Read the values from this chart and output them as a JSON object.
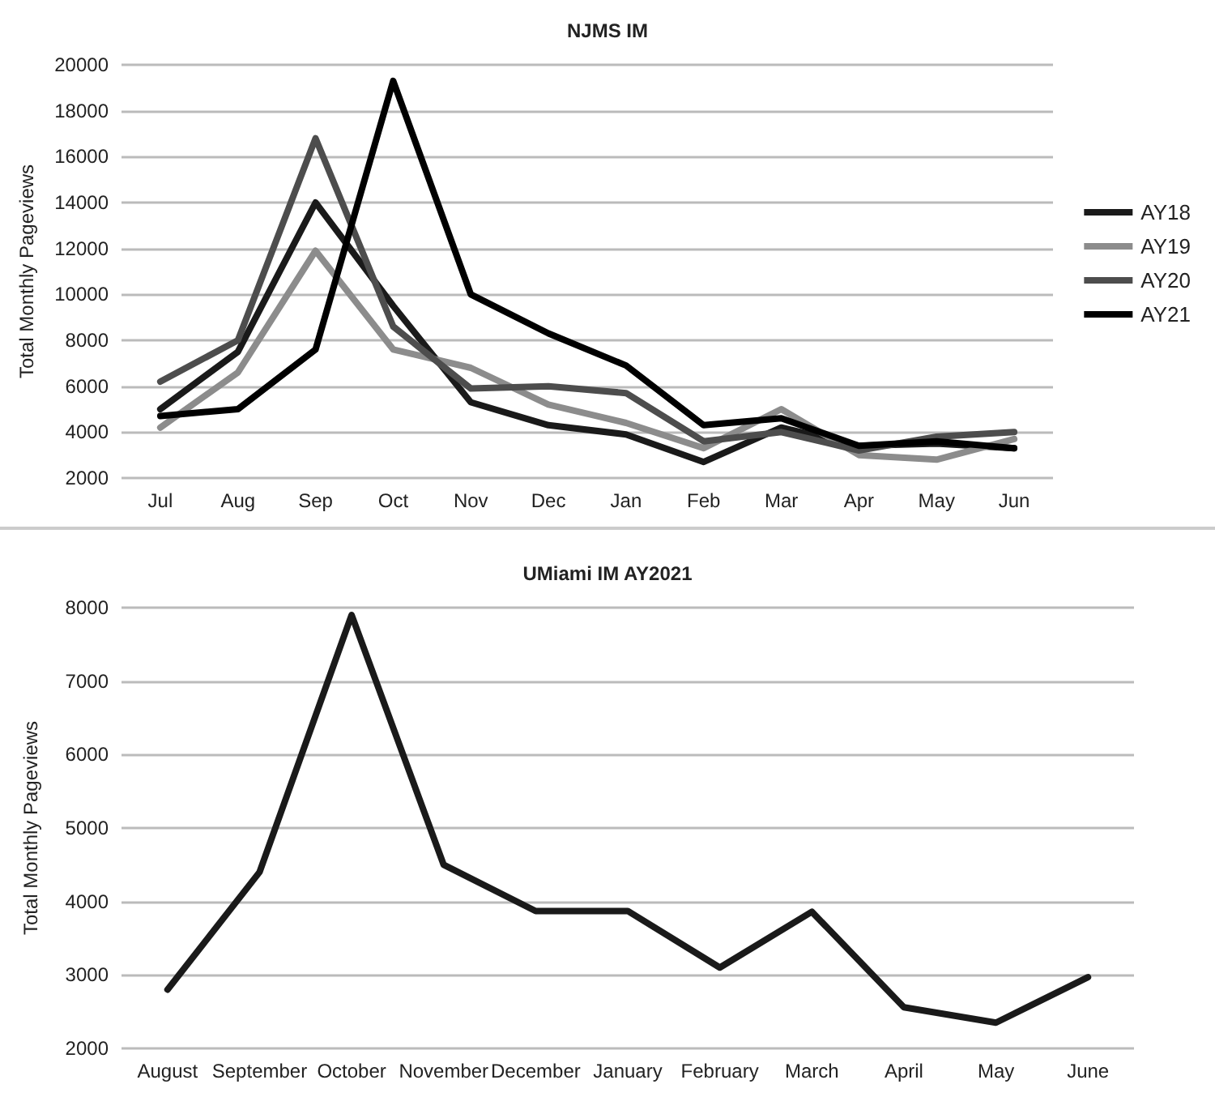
{
  "chart_data": [
    {
      "type": "line",
      "title": "NJMS IM",
      "ylabel": "Total Monthly Pageviews",
      "categories": [
        "Jul",
        "Aug",
        "Sep",
        "Oct",
        "Nov",
        "Dec",
        "Jan",
        "Feb",
        "Mar",
        "Apr",
        "May",
        "Jun"
      ],
      "series": [
        {
          "name": "AY18",
          "color": "#1a1a1a",
          "values": [
            5000,
            7500,
            14000,
            9500,
            5300,
            4300,
            3900,
            2700,
            4200,
            3400,
            3500,
            3300
          ]
        },
        {
          "name": "AY19",
          "color": "#8c8c8c",
          "values": [
            4200,
            6600,
            11900,
            7600,
            6800,
            5200,
            4400,
            3300,
            5000,
            3000,
            2800,
            3700
          ]
        },
        {
          "name": "AY20",
          "color": "#4d4d4d",
          "values": [
            6200,
            8000,
            16800,
            8600,
            5900,
            6000,
            5700,
            3600,
            4000,
            3200,
            3800,
            4000
          ]
        },
        {
          "name": "AY21",
          "color": "#000000",
          "values": [
            4700,
            5000,
            7600,
            19300,
            10000,
            8300,
            6900,
            4300,
            4600,
            3400,
            3600,
            3300
          ]
        }
      ],
      "ylim": [
        2000,
        20000
      ],
      "yticks": [
        2000,
        4000,
        6000,
        8000,
        10000,
        12000,
        14000,
        16000,
        18000,
        20000
      ],
      "grid": "y",
      "legend": "right",
      "marker": "none",
      "line_style": "solid"
    },
    {
      "type": "line",
      "title": "UMiami IM AY2021",
      "ylabel": "Total Monthly Pageviews",
      "categories": [
        "August",
        "September",
        "October",
        "November",
        "December",
        "January",
        "February",
        "March",
        "April",
        "May",
        "June"
      ],
      "series": [
        {
          "color": "#1a1a1a",
          "values": [
            2800,
            4400,
            7900,
            4500,
            3870,
            3870,
            3100,
            3860,
            2560,
            2350,
            2970
          ]
        }
      ],
      "ylim": [
        2000,
        8000
      ],
      "yticks": [
        2000,
        3000,
        4000,
        5000,
        6000,
        7000,
        8000
      ],
      "grid": "y",
      "legend": false,
      "marker": "none",
      "line_style": "solid"
    }
  ]
}
